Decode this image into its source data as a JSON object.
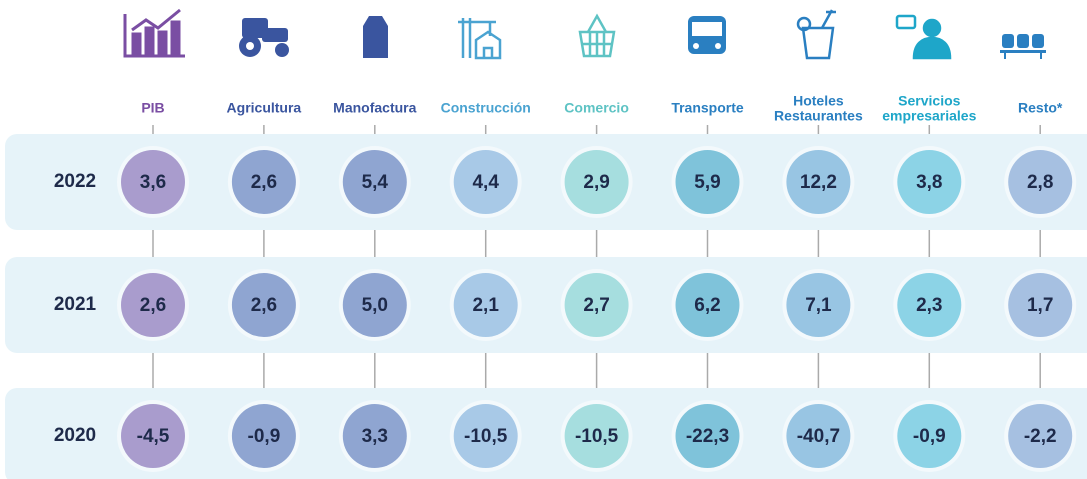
{
  "columns": [
    {
      "name": [
        "PIB"
      ],
      "label_color": "#7a4ea3",
      "circle_color": "#a99ccd"
    },
    {
      "name": [
        "Agricultura"
      ],
      "label_color": "#3a559f",
      "circle_color": "#8fa5d1"
    },
    {
      "name": [
        "Manofactura"
      ],
      "label_color": "#3a559f",
      "circle_color": "#8fa5d1"
    },
    {
      "name": [
        "Construcción"
      ],
      "label_color": "#4aa3d1",
      "circle_color": "#a8c9e7"
    },
    {
      "name": [
        "Comercio"
      ],
      "label_color": "#5ec3c4",
      "circle_color": "#a6dedf"
    },
    {
      "name": [
        "Transporte"
      ],
      "label_color": "#2a7fc1",
      "circle_color": "#7fc3da"
    },
    {
      "name": [
        "Hoteles",
        "Restaurantes"
      ],
      "label_color": "#2a7fc1",
      "circle_color": "#98c5e3"
    },
    {
      "name": [
        "Servicios",
        "empresariales"
      ],
      "label_color": "#1ea6c9",
      "circle_color": "#8cd3e6"
    },
    {
      "name": [
        "Resto*"
      ],
      "label_color": "#2a7fc1",
      "circle_color": "#a6c0e1"
    }
  ],
  "rows": [
    {
      "year": "2022",
      "values": [
        "3,6",
        "2,6",
        "5,4",
        "4,4",
        "2,9",
        "5,9",
        "12,2",
        "3,8",
        "2,8"
      ]
    },
    {
      "year": "2021",
      "values": [
        "2,6",
        "2,6",
        "5,0",
        "2,1",
        "2,7",
        "6,2",
        "7,1",
        "2,3",
        "1,7"
      ]
    },
    {
      "year": "2020",
      "values": [
        "-4,5",
        "-0,9",
        "3,3",
        "-10,5",
        "-10,5",
        "-22,3",
        "-40,7",
        "-0,9",
        "-2,2"
      ]
    }
  ]
}
